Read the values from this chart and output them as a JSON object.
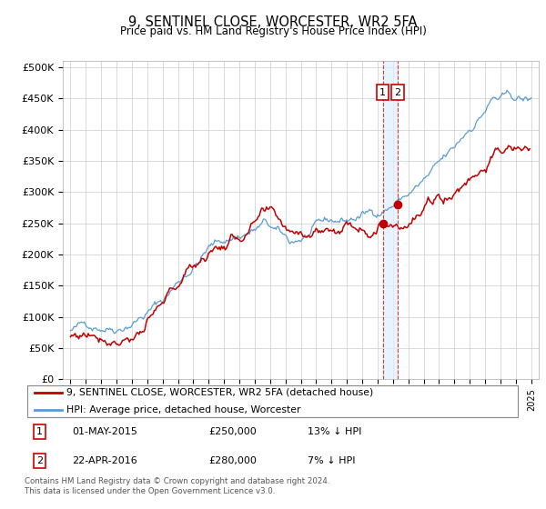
{
  "title": "9, SENTINEL CLOSE, WORCESTER, WR2 5FA",
  "subtitle": "Price paid vs. HM Land Registry's House Price Index (HPI)",
  "yticks": [
    0,
    50000,
    100000,
    150000,
    200000,
    250000,
    300000,
    350000,
    400000,
    450000,
    500000
  ],
  "ytick_labels": [
    "£0",
    "£50K",
    "£100K",
    "£150K",
    "£200K",
    "£250K",
    "£300K",
    "£350K",
    "£400K",
    "£450K",
    "£500K"
  ],
  "hpi_color": "#5b9bd5",
  "price_color": "#c00000",
  "vline_color": "#ee3333",
  "vfill_color": "#ddeeff",
  "purchase_1": {
    "date_num": 2015.33,
    "price": 250000
  },
  "purchase_2": {
    "date_num": 2016.31,
    "price": 280000
  },
  "legend_entry_1": "9, SENTINEL CLOSE, WORCESTER, WR2 5FA (detached house)",
  "legend_entry_2": "HPI: Average price, detached house, Worcester",
  "footer": "Contains HM Land Registry data © Crown copyright and database right 2024.\nThis data is licensed under the Open Government Licence v3.0.",
  "xlim": [
    1994.5,
    2025.5
  ],
  "ylim": [
    0,
    510000
  ],
  "grid_color": "#cccccc",
  "spine_color": "#aaaaaa"
}
